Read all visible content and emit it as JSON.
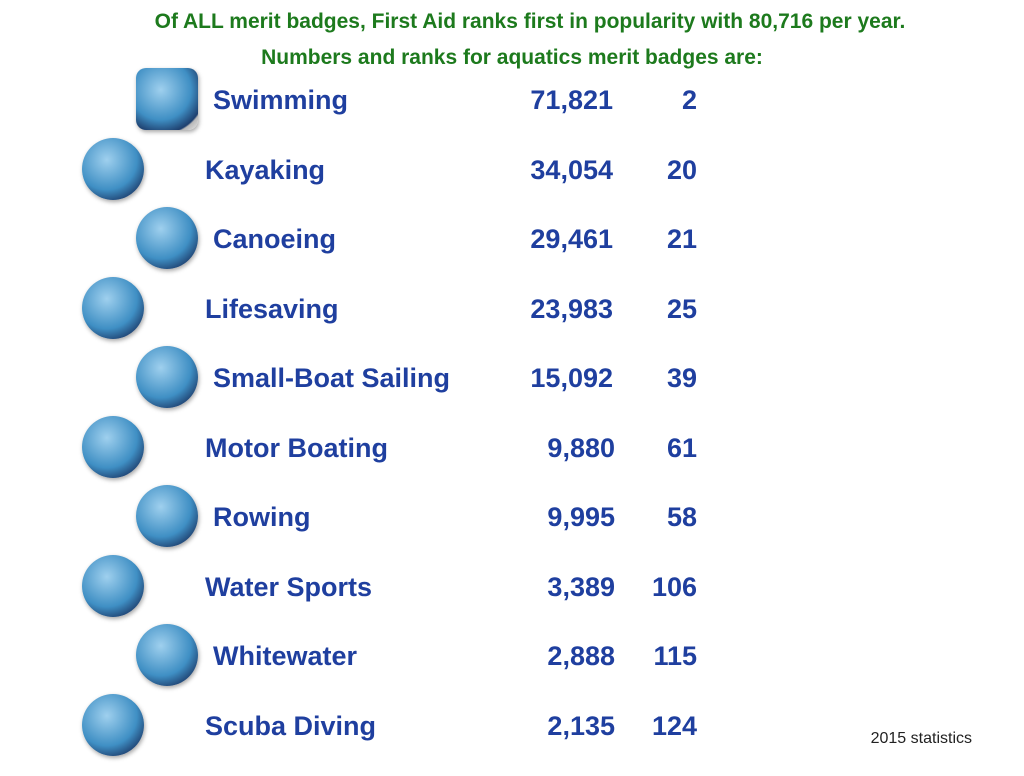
{
  "header": {
    "title_line1": "Of ALL merit badges, First Aid ranks first in popularity with 80,716 per year.",
    "title_line2": "Numbers and ranks for aquatics merit badges are:"
  },
  "table": {
    "rows": [
      [
        "Swimming",
        "71,821",
        "2"
      ],
      [
        "Kayaking",
        "34,054",
        "20"
      ],
      [
        "Canoeing",
        "29,461",
        "21"
      ],
      [
        "Lifesaving",
        "23,983",
        "25"
      ],
      [
        "Small-Boat Sailing",
        "15,092",
        "39"
      ],
      [
        "Motor Boating",
        "9,880",
        "61"
      ],
      [
        "Rowing",
        "9,995",
        "58"
      ],
      [
        "Water Sports",
        "3,389",
        "106"
      ],
      [
        "Whitewater",
        "2,888",
        "115"
      ],
      [
        "Scuba Diving",
        "2,135",
        "124"
      ]
    ]
  },
  "footnote": "2015 statistics"
}
